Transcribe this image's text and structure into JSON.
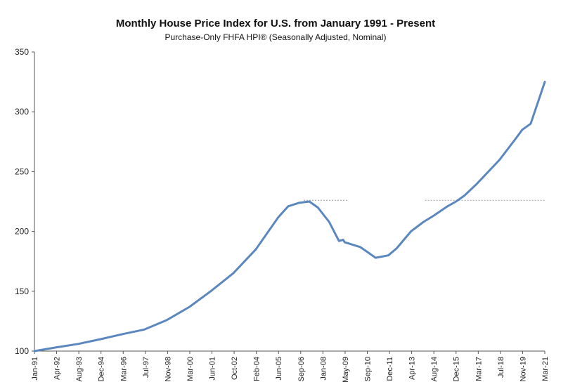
{
  "chart_data": {
    "type": "line",
    "title": "Monthly House Price Index for U.S. from January 1991 - Present",
    "subtitle": "Purchase-Only FHFA HPI® (Seasonally Adjusted, Nominal)",
    "xlabel": "",
    "ylabel": "",
    "ylim": [
      100,
      350
    ],
    "yticks": [
      100,
      150,
      200,
      250,
      300,
      350
    ],
    "xlim": [
      "1991-01",
      "2021-03"
    ],
    "xticks": [
      "Jan-91",
      "Apr-92",
      "Aug-93",
      "Dec-94",
      "Mar-96",
      "Jul-97",
      "Nov-98",
      "Mar-00",
      "Jun-01",
      "Oct-02",
      "Feb-04",
      "Jun-05",
      "Sep-06",
      "Jan-08",
      "May-09",
      "Sep-10",
      "Dec-11",
      "Apr-13",
      "Aug-14",
      "Dec-15",
      "Mar-17",
      "Jul-18",
      "Nov-19",
      "Mar-21"
    ],
    "grid": false,
    "legend": "none",
    "line_color": "#5b87bf",
    "reference_color": "#999999",
    "series": [
      {
        "x": [
          "1991-01",
          "1992-04",
          "1993-08",
          "1994-12",
          "1996-03",
          "1997-07",
          "1998-11",
          "2000-03",
          "2001-06",
          "2002-10",
          "2004-02",
          "2005-06",
          "2006-01",
          "2006-09",
          "2007-04",
          "2007-10",
          "2008-06",
          "2009-01",
          "2009-04",
          "2009-05",
          "2010-04",
          "2010-09",
          "2011-03",
          "2011-12",
          "2012-06",
          "2013-04",
          "2014-01",
          "2014-08",
          "2015-06",
          "2015-12",
          "2016-06",
          "2017-03",
          "2018-07",
          "2019-06",
          "2019-11",
          "2020-05",
          "2021-03"
        ],
        "y": [
          100,
          103,
          106,
          110,
          114,
          118,
          126,
          137,
          150,
          165,
          185,
          212,
          221,
          224,
          225,
          220,
          208,
          192,
          193,
          191,
          187,
          183,
          178,
          180,
          186,
          200,
          208,
          213,
          221,
          225,
          230,
          240,
          260,
          277,
          285,
          290,
          325
        ]
      }
    ],
    "annotations": [
      {
        "type": "hline",
        "y": 226,
        "x_from": "2006-12",
        "x_to": "2009-07"
      },
      {
        "type": "hline",
        "y": 226,
        "x_from": "2014-02",
        "x_to": "2021-03"
      }
    ]
  }
}
